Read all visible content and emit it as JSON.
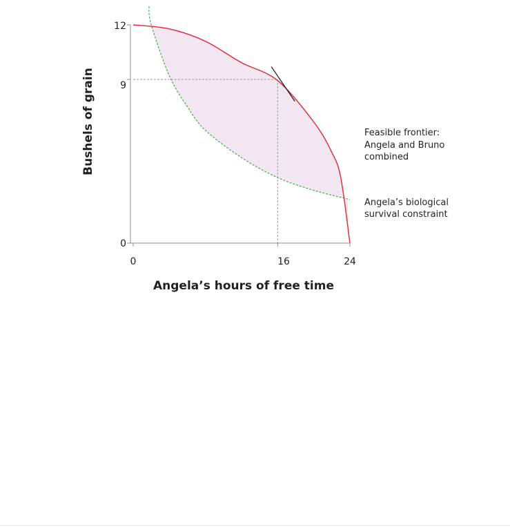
{
  "chart_data": {
    "type": "line",
    "xlabel": "Angela’s hours of free time",
    "ylabel": "Bushels of grain",
    "xlim": [
      0,
      24
    ],
    "ylim": [
      0,
      12
    ],
    "x_ticks": [
      "0",
      "16",
      "24"
    ],
    "y_ticks": [
      "0",
      "9",
      "12"
    ],
    "grid": false,
    "series": [
      {
        "name": "Feasible frontier: Angela and Bruno combined",
        "style": "solid",
        "color": "#e8242f",
        "x": [
          0,
          4,
          8,
          12,
          16,
          20,
          22,
          23,
          24
        ],
        "y": [
          12,
          11.78,
          11.1,
          9.92,
          8.94,
          6.66,
          4.99,
          3.58,
          0
        ]
      },
      {
        "name": "Angela’s biological survival constraint",
        "style": "dashed",
        "color": "#3fae49",
        "x": [
          2,
          4,
          6,
          8,
          12,
          16,
          20,
          24
        ],
        "y": [
          12,
          9.2,
          7.5,
          6.2,
          4.7,
          3.6,
          2.9,
          2.4
        ]
      }
    ],
    "shaded_region": {
      "description_color": "#f1e6f2",
      "between": [
        "Feasible frontier: Angela and Bruno combined",
        "Angela’s biological survival constraint"
      ]
    },
    "guide_point": {
      "x": 16,
      "y": 9
    },
    "tangent": {
      "x1": 15.3,
      "y1": 9.7,
      "x2": 17.9,
      "y2": 7.8
    },
    "annotations": [
      {
        "lines": [
          "Feasible frontier:",
          "Angela and Bruno",
          "combined"
        ]
      },
      {
        "lines": [
          "Angela’s biological",
          "survival constraint"
        ]
      }
    ],
    "colors": {
      "frontier": "#e8242f",
      "survival": "#3fae49",
      "fill": "#f1e6f2",
      "axis": "#8c8c8c",
      "guide": "#9a9a9a",
      "tangent": "#231f20"
    }
  }
}
